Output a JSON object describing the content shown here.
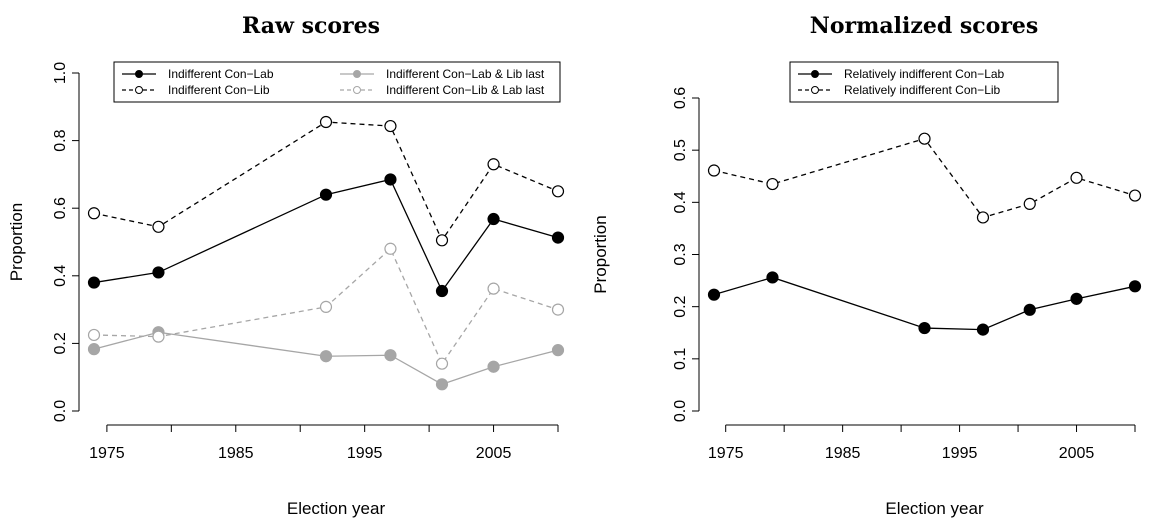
{
  "chart_data": [
    {
      "type": "line",
      "title": "Raw scores",
      "xlabel": "Election year",
      "ylabel": "Proportion",
      "xlim": [
        1974,
        2010
      ],
      "ylim": [
        0,
        1
      ],
      "xticks": [
        1975,
        1985,
        1995,
        2005
      ],
      "yticks": [
        0.0,
        0.2,
        0.4,
        0.6,
        0.8,
        1.0
      ],
      "ytick_labels": [
        "0.0",
        "0.2",
        "0.4",
        "0.6",
        "0.8",
        "1.0"
      ],
      "legend_position": "top",
      "x": [
        1974,
        1979,
        1992,
        1997,
        2001,
        2005,
        2010
      ],
      "series": [
        {
          "name": "Indifferent Con−Lab",
          "color": "#000000",
          "dash": "solid",
          "marker": "filled",
          "values": [
            0.38,
            0.41,
            0.64,
            0.685,
            0.355,
            0.568,
            0.513
          ]
        },
        {
          "name": "Indifferent Con−Lib",
          "color": "#000000",
          "dash": "dashed",
          "marker": "open",
          "values": [
            0.585,
            0.545,
            0.855,
            0.843,
            0.505,
            0.73,
            0.65
          ]
        },
        {
          "name": "Indifferent Con−Lab & Lib last",
          "color": "#a6a6a6",
          "dash": "solid",
          "marker": "filled",
          "values": [
            0.183,
            0.233,
            0.162,
            0.165,
            0.079,
            0.131,
            0.18
          ]
        },
        {
          "name": "Indifferent Con−Lib & Lab last",
          "color": "#a6a6a6",
          "dash": "dashed",
          "marker": "open",
          "values": [
            0.225,
            0.22,
            0.308,
            0.48,
            0.14,
            0.362,
            0.3
          ]
        }
      ]
    },
    {
      "type": "line",
      "title": "Normalized scores",
      "xlabel": "Election year",
      "ylabel": "Proportion",
      "xlim": [
        1974,
        2010
      ],
      "ylim": [
        0,
        0.6
      ],
      "xticks": [
        1975,
        1985,
        1995,
        2005
      ],
      "yticks": [
        0.0,
        0.1,
        0.2,
        0.3,
        0.4,
        0.5,
        0.6
      ],
      "ytick_labels": [
        "0.0",
        "0.1",
        "0.2",
        "0.3",
        "0.4",
        "0.5",
        "0.6"
      ],
      "legend_position": "top",
      "x": [
        1974,
        1979,
        1992,
        1997,
        2001,
        2005,
        2010
      ],
      "series": [
        {
          "name": "Relatively indifferent Con−Lab",
          "color": "#000000",
          "dash": "solid",
          "marker": "filled",
          "values": [
            0.223,
            0.256,
            0.159,
            0.156,
            0.194,
            0.215,
            0.239
          ]
        },
        {
          "name": "Relatively indifferent Con−Lib",
          "color": "#000000",
          "dash": "dashed",
          "marker": "open",
          "values": [
            0.461,
            0.435,
            0.522,
            0.371,
            0.397,
            0.447,
            0.413
          ]
        }
      ]
    }
  ]
}
